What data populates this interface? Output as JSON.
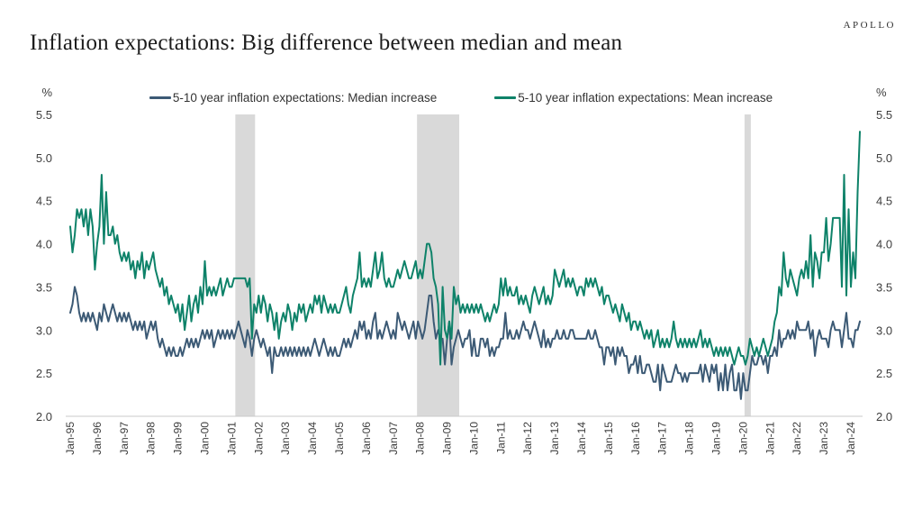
{
  "brand": "APOLLO",
  "title": "Inflation expectations: Big difference between median and mean",
  "axis": {
    "unit_label": "%",
    "y_ticks": [
      "5.5",
      "5.0",
      "4.5",
      "4.0",
      "3.5",
      "3.0",
      "2.5",
      "2.0"
    ],
    "x_tick_labels": [
      "Jan-95",
      "Jan-96",
      "Jan-97",
      "Jan-98",
      "Jan-99",
      "Jan-00",
      "Jan-01",
      "Jan-02",
      "Jan-03",
      "Jan-04",
      "Jan-05",
      "Jan-06",
      "Jan-07",
      "Jan-08",
      "Jan-09",
      "Jan-10",
      "Jan-11",
      "Jan-12",
      "Jan-13",
      "Jan-14",
      "Jan-15",
      "Jan-16",
      "Jan-17",
      "Jan-18",
      "Jan-19",
      "Jan-20",
      "Jan-21",
      "Jan-22",
      "Jan-23",
      "Jan-24"
    ],
    "x_tick_every_months": 12,
    "tick_color": "#3d3d3d",
    "axis_line_color": "#c9c9c9"
  },
  "chart_data": {
    "type": "line",
    "title": "Inflation expectations: Big difference between median and mean",
    "xlabel": "",
    "ylabel": "%",
    "ylim": [
      2.0,
      5.5
    ],
    "grid": false,
    "legend_position": "top",
    "start_month": "1995-01",
    "frequency": "monthly",
    "band_color": "#d9d9d9",
    "recession_bands": [
      {
        "from": "2001-03",
        "to": "2001-11"
      },
      {
        "from": "2007-12",
        "to": "2009-06"
      },
      {
        "from": "2020-02",
        "to": "2020-04"
      }
    ],
    "series": [
      {
        "name": "5-10 year inflation expectations: Median increase",
        "color": "#3c5a75",
        "values": [
          3.2,
          3.3,
          3.5,
          3.4,
          3.2,
          3.1,
          3.2,
          3.1,
          3.2,
          3.1,
          3.2,
          3.1,
          3.0,
          3.2,
          3.1,
          3.3,
          3.2,
          3.1,
          3.2,
          3.3,
          3.2,
          3.1,
          3.2,
          3.1,
          3.2,
          3.1,
          3.2,
          3.1,
          3.0,
          3.1,
          3.0,
          3.1,
          3.0,
          3.1,
          2.9,
          3.0,
          3.1,
          3.0,
          3.1,
          2.9,
          2.8,
          2.9,
          2.8,
          2.7,
          2.8,
          2.7,
          2.8,
          2.7,
          2.7,
          2.8,
          2.7,
          2.8,
          2.9,
          2.8,
          2.9,
          2.8,
          2.9,
          2.8,
          2.9,
          3.0,
          2.9,
          3.0,
          2.9,
          3.0,
          2.8,
          2.9,
          3.0,
          2.9,
          3.0,
          2.9,
          3.0,
          2.9,
          3.0,
          2.9,
          3.0,
          3.1,
          3.0,
          2.9,
          2.8,
          3.0,
          2.9,
          2.7,
          2.9,
          3.0,
          2.9,
          2.8,
          2.9,
          2.8,
          2.7,
          2.8,
          2.5,
          2.8,
          2.7,
          2.7,
          2.8,
          2.7,
          2.8,
          2.7,
          2.8,
          2.7,
          2.8,
          2.7,
          2.8,
          2.7,
          2.8,
          2.7,
          2.8,
          2.7,
          2.8,
          2.9,
          2.8,
          2.7,
          2.8,
          2.9,
          2.8,
          2.7,
          2.8,
          2.7,
          2.8,
          2.7,
          2.7,
          2.8,
          2.9,
          2.8,
          2.9,
          2.8,
          2.9,
          3.0,
          2.9,
          3.1,
          3.0,
          3.1,
          2.9,
          3.0,
          2.9,
          3.1,
          3.2,
          2.9,
          3.0,
          2.9,
          3.0,
          3.1,
          3.0,
          2.9,
          3.0,
          2.9,
          3.2,
          3.1,
          3.0,
          3.1,
          3.0,
          2.9,
          3.0,
          3.1,
          2.9,
          3.1,
          3.0,
          2.9,
          3.0,
          3.2,
          3.4,
          3.4,
          3.1,
          2.9,
          3.0,
          2.9,
          2.9,
          2.6,
          2.9,
          3.1,
          2.6,
          2.8,
          2.9,
          3.0,
          2.9,
          2.8,
          2.9,
          2.9,
          3.0,
          2.7,
          2.9,
          2.7,
          2.7,
          2.9,
          2.9,
          2.8,
          2.9,
          2.7,
          2.8,
          2.7,
          2.8,
          2.8,
          2.9,
          2.9,
          3.2,
          2.9,
          3.0,
          2.9,
          2.9,
          3.0,
          2.9,
          3.0,
          3.1,
          3.0,
          3.0,
          2.9,
          3.0,
          3.1,
          3.0,
          2.9,
          2.8,
          3.0,
          2.8,
          2.9,
          2.8,
          2.9,
          2.9,
          3.0,
          2.9,
          2.9,
          3.0,
          2.9,
          2.9,
          3.0,
          3.0,
          2.9,
          2.9,
          2.9,
          2.9,
          2.9,
          2.9,
          3.0,
          2.9,
          2.9,
          3.0,
          2.9,
          2.8,
          2.8,
          2.6,
          2.8,
          2.8,
          2.7,
          2.8,
          2.6,
          2.8,
          2.7,
          2.8,
          2.7,
          2.7,
          2.5,
          2.6,
          2.6,
          2.7,
          2.5,
          2.7,
          2.5,
          2.5,
          2.6,
          2.6,
          2.5,
          2.4,
          2.4,
          2.6,
          2.3,
          2.6,
          2.5,
          2.4,
          2.4,
          2.4,
          2.5,
          2.6,
          2.5,
          2.5,
          2.4,
          2.5,
          2.4,
          2.5,
          2.5,
          2.5,
          2.5,
          2.5,
          2.6,
          2.4,
          2.6,
          2.5,
          2.4,
          2.6,
          2.5,
          2.6,
          2.3,
          2.5,
          2.3,
          2.6,
          2.3,
          2.5,
          2.6,
          2.3,
          2.3,
          2.5,
          2.2,
          2.5,
          2.3,
          2.3,
          2.5,
          2.7,
          2.6,
          2.6,
          2.7,
          2.7,
          2.6,
          2.7,
          2.5,
          2.7,
          2.7,
          2.8,
          2.7,
          3.0,
          2.8,
          2.9,
          2.9,
          3.0,
          2.9,
          3.0,
          2.9,
          3.1,
          3.0,
          3.0,
          3.0,
          3.0,
          3.1,
          2.9,
          3.0,
          2.7,
          2.9,
          3.0,
          2.9,
          2.9,
          2.9,
          2.8,
          3.0,
          3.1,
          3.0,
          3.0,
          3.0,
          2.8,
          3.0,
          3.2,
          2.9,
          2.9,
          2.8,
          3.0,
          3.0,
          3.1
        ]
      },
      {
        "name": "5-10 year inflation expectations: Mean increase",
        "color": "#0e8269",
        "values": [
          4.2,
          3.9,
          4.1,
          4.4,
          4.3,
          4.4,
          4.2,
          4.4,
          4.1,
          4.4,
          4.2,
          3.7,
          4.0,
          4.2,
          4.8,
          4.0,
          4.6,
          4.1,
          4.1,
          4.2,
          4.0,
          4.1,
          3.9,
          3.8,
          3.9,
          3.8,
          3.9,
          3.7,
          3.8,
          3.6,
          3.8,
          3.7,
          3.9,
          3.6,
          3.8,
          3.7,
          3.8,
          3.9,
          3.7,
          3.6,
          3.5,
          3.6,
          3.4,
          3.5,
          3.3,
          3.4,
          3.3,
          3.2,
          3.3,
          3.1,
          3.3,
          3.0,
          3.2,
          3.4,
          3.1,
          3.3,
          3.4,
          3.2,
          3.5,
          3.3,
          3.8,
          3.4,
          3.5,
          3.4,
          3.5,
          3.4,
          3.5,
          3.6,
          3.4,
          3.5,
          3.6,
          3.5,
          3.5,
          3.6,
          3.6,
          3.6,
          3.6,
          3.6,
          3.6,
          3.5,
          3.6,
          2.9,
          3.3,
          3.2,
          3.4,
          3.2,
          3.4,
          3.3,
          3.1,
          3.3,
          3.2,
          3.0,
          3.2,
          2.9,
          3.1,
          3.2,
          3.1,
          3.3,
          3.2,
          3.0,
          3.2,
          3.1,
          3.3,
          3.2,
          3.3,
          3.1,
          3.2,
          3.3,
          3.2,
          3.4,
          3.3,
          3.4,
          3.2,
          3.4,
          3.3,
          3.2,
          3.3,
          3.2,
          3.3,
          3.2,
          3.2,
          3.3,
          3.4,
          3.5,
          3.3,
          3.2,
          3.4,
          3.5,
          3.6,
          3.9,
          3.5,
          3.6,
          3.5,
          3.6,
          3.5,
          3.7,
          3.9,
          3.6,
          3.7,
          3.9,
          3.6,
          3.5,
          3.6,
          3.5,
          3.5,
          3.6,
          3.7,
          3.6,
          3.7,
          3.8,
          3.7,
          3.6,
          3.6,
          3.7,
          3.8,
          3.6,
          3.7,
          3.6,
          3.8,
          4.0,
          4.0,
          3.9,
          3.6,
          3.5,
          3.3,
          2.6,
          3.5,
          3.0,
          2.9,
          3.1,
          2.9,
          3.5,
          3.3,
          3.4,
          3.2,
          3.3,
          3.2,
          3.3,
          3.2,
          3.3,
          3.2,
          3.3,
          3.2,
          3.3,
          3.2,
          3.1,
          3.2,
          3.1,
          3.2,
          3.3,
          3.2,
          3.3,
          3.6,
          3.4,
          3.6,
          3.4,
          3.5,
          3.4,
          3.4,
          3.5,
          3.3,
          3.4,
          3.3,
          3.4,
          3.3,
          3.2,
          3.4,
          3.5,
          3.4,
          3.3,
          3.4,
          3.5,
          3.3,
          3.4,
          3.3,
          3.4,
          3.7,
          3.6,
          3.5,
          3.6,
          3.7,
          3.5,
          3.6,
          3.5,
          3.6,
          3.5,
          3.4,
          3.5,
          3.5,
          3.4,
          3.6,
          3.5,
          3.6,
          3.5,
          3.6,
          3.5,
          3.4,
          3.5,
          3.3,
          3.4,
          3.4,
          3.3,
          3.2,
          3.3,
          3.2,
          3.1,
          3.3,
          3.2,
          3.1,
          3.2,
          3.0,
          3.1,
          3.1,
          3.0,
          3.1,
          3.0,
          2.9,
          3.0,
          2.9,
          3.0,
          2.8,
          2.9,
          3.0,
          2.8,
          2.9,
          2.8,
          2.9,
          2.8,
          2.9,
          3.1,
          2.9,
          2.8,
          2.9,
          2.8,
          2.9,
          2.8,
          2.9,
          2.8,
          2.9,
          2.8,
          2.9,
          3.0,
          2.8,
          2.9,
          2.8,
          2.9,
          2.8,
          2.7,
          2.8,
          2.7,
          2.8,
          2.7,
          2.8,
          2.7,
          2.8,
          2.7,
          2.6,
          2.7,
          2.8,
          2.7,
          2.7,
          2.6,
          2.7,
          2.9,
          2.8,
          2.7,
          2.8,
          2.7,
          2.8,
          2.9,
          2.8,
          2.7,
          2.8,
          2.9,
          3.1,
          3.2,
          3.5,
          3.4,
          3.9,
          3.6,
          3.5,
          3.7,
          3.6,
          3.5,
          3.4,
          3.6,
          3.7,
          3.6,
          3.8,
          3.6,
          4.1,
          3.5,
          3.9,
          3.8,
          3.6,
          3.9,
          3.9,
          4.3,
          3.8,
          4.0,
          4.3,
          4.3,
          4.3,
          4.3,
          3.5,
          4.8,
          3.4,
          4.4,
          3.5,
          3.9,
          3.6,
          4.6,
          5.3
        ]
      }
    ]
  }
}
